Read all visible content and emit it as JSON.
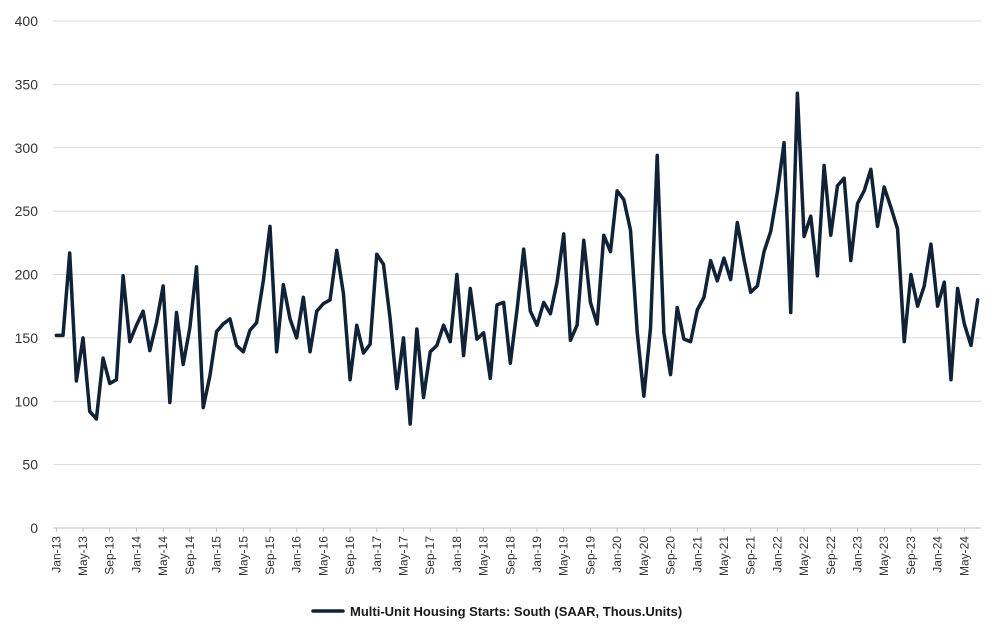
{
  "chart_data": {
    "type": "line",
    "title": "",
    "xlabel": "",
    "ylabel": "",
    "ylim": [
      0,
      400
    ],
    "yticks": [
      0,
      50,
      100,
      150,
      200,
      250,
      300,
      350,
      400
    ],
    "grid": true,
    "legend_position": "bottom",
    "x_tick_labels": [
      "Jan-13",
      "May-13",
      "Sep-13",
      "Jan-14",
      "May-14",
      "Sep-14",
      "Jan-15",
      "May-15",
      "Sep-15",
      "Jan-16",
      "May-16",
      "Sep-16",
      "Jan-17",
      "May-17",
      "Sep-17",
      "Jan-18",
      "May-18",
      "Sep-18",
      "Jan-19",
      "May-19",
      "Sep-19",
      "Jan-20",
      "May-20",
      "Sep-20",
      "Jan-21",
      "May-21",
      "Sep-21",
      "Jan-22",
      "May-22",
      "Sep-22",
      "Jan-23",
      "May-23",
      "Sep-23",
      "Jan-24",
      "May-24"
    ],
    "start_month": "Jan-13",
    "series": [
      {
        "name": "Multi-Unit Housing Starts: South (SAAR, Thous.Units)",
        "color": "#0f2238",
        "values": [
          152,
          152,
          217,
          116,
          150,
          92,
          86,
          134,
          114,
          117,
          199,
          147,
          160,
          171,
          140,
          162,
          191,
          99,
          170,
          129,
          158,
          206,
          95,
          120,
          155,
          161,
          165,
          144,
          139,
          156,
          162,
          195,
          238,
          139,
          192,
          165,
          150,
          182,
          139,
          171,
          177,
          180,
          219,
          185,
          117,
          160,
          138,
          145,
          216,
          208,
          165,
          110,
          150,
          82,
          157,
          103,
          139,
          144,
          160,
          147,
          200,
          136,
          189,
          149,
          154,
          118,
          176,
          178,
          130,
          172,
          220,
          171,
          160,
          178,
          169,
          194,
          232,
          148,
          160,
          227,
          178,
          161,
          231,
          218,
          266,
          259,
          235,
          155,
          104,
          158,
          294,
          154,
          121,
          174,
          149,
          147,
          172,
          182,
          211,
          195,
          213,
          196,
          241,
          212,
          186,
          191,
          218,
          234,
          265,
          304,
          170,
          343,
          230,
          246,
          199,
          286,
          231,
          270,
          276,
          211,
          256,
          266,
          283,
          238,
          269,
          253,
          236,
          147,
          200,
          175,
          191,
          224,
          175,
          194,
          117,
          189,
          161,
          144,
          180
        ]
      }
    ]
  }
}
